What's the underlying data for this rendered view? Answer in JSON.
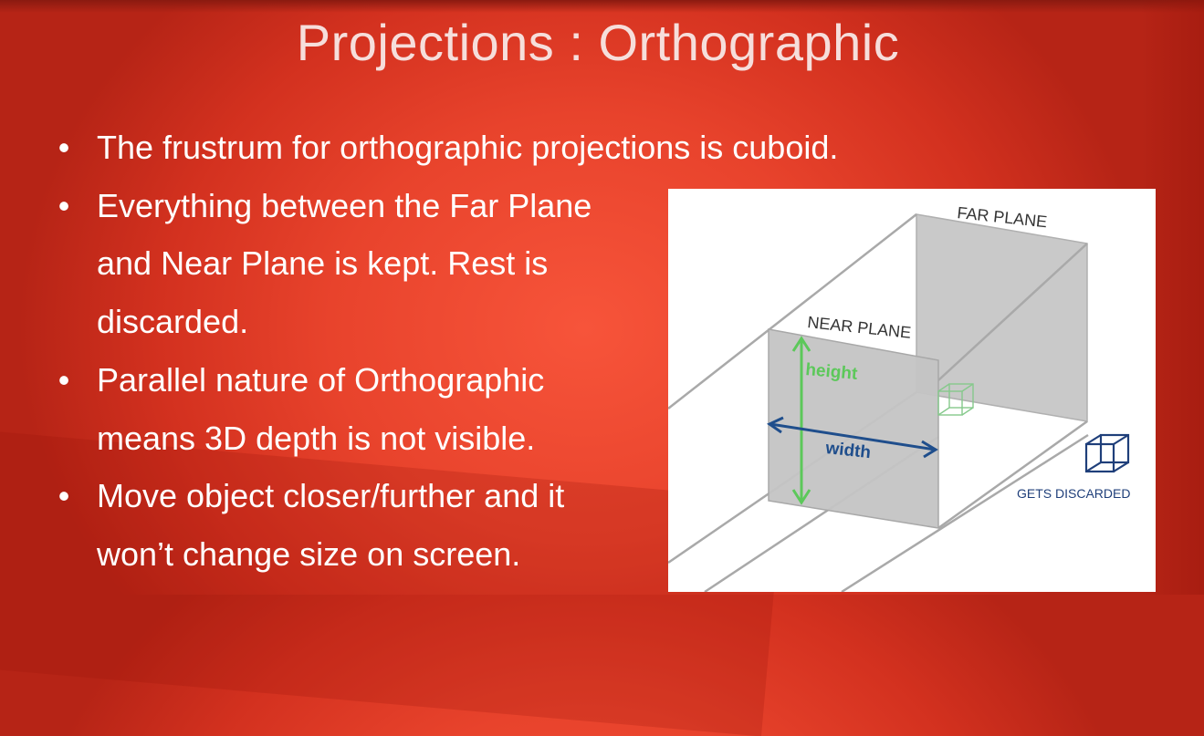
{
  "slide": {
    "title": "Projections : Orthographic",
    "bullets": [
      {
        "text": "The frustrum for orthographic projections is cuboid."
      },
      {
        "text": "Everything between the Far Plane and Near Plane is kept. Rest is discarded."
      },
      {
        "text": "Parallel nature of Orthographic means 3D depth is not visible."
      },
      {
        "text": "Move object closer/further and it won’t change size on screen."
      }
    ]
  },
  "diagram": {
    "far_plane_label": "FAR PLANE",
    "near_plane_label": "NEAR PLANE",
    "height_label": "height",
    "width_label": "width",
    "discarded_label": "GETS DISCARDED",
    "colors": {
      "plane_fill": "#c9c9c9",
      "edge": "#a9a9a9",
      "height_arrow": "#5cc85a",
      "width_arrow": "#1f4e8c",
      "kept_cube": "#86c98c",
      "discarded_cube": "#1f3f7a"
    }
  }
}
